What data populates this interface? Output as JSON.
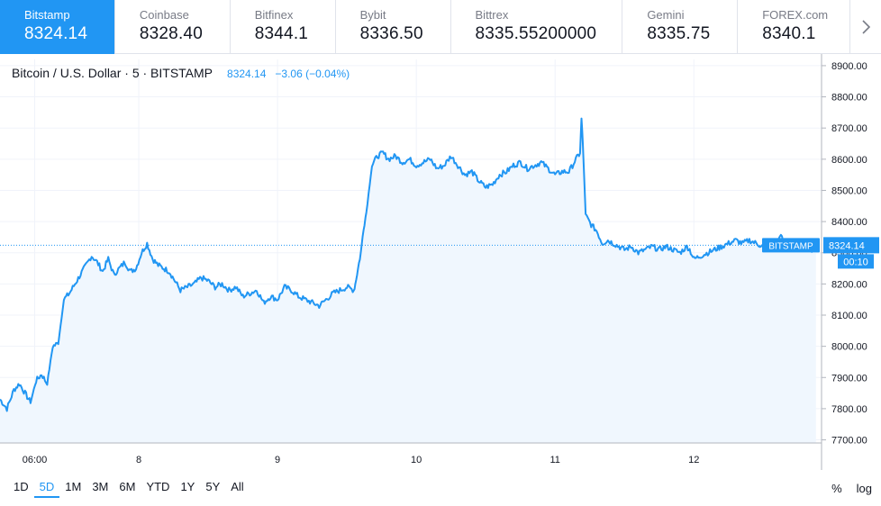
{
  "exchanges": [
    {
      "name": "Bitstamp",
      "price": "8324.14",
      "active": true
    },
    {
      "name": "Coinbase",
      "price": "8328.40",
      "active": false
    },
    {
      "name": "Bitfinex",
      "price": "8344.1",
      "active": false
    },
    {
      "name": "Bybit",
      "price": "8336.50",
      "active": false
    },
    {
      "name": "Bittrex",
      "price": "8335.55200000",
      "active": false
    },
    {
      "name": "Gemini",
      "price": "8335.75",
      "active": false
    },
    {
      "name": "FOREX.com",
      "price": "8340.1",
      "active": false
    }
  ],
  "legend": {
    "symbol": "Bitcoin / U.S. Dollar · 5 · BITSTAMP",
    "last": "8324.14",
    "change": "−3.06 (−0.04%)"
  },
  "price_marker": {
    "label": "BITSTAMP",
    "value": "8324.14",
    "countdown": "00:10"
  },
  "toolbar": {
    "ranges": [
      "1D",
      "5D",
      "1M",
      "3M",
      "6M",
      "YTD",
      "1Y",
      "5Y",
      "All"
    ],
    "active_range": "5D",
    "percent_label": "%",
    "log_label": "log"
  },
  "colors": {
    "line": "#2196f3",
    "area": "#e8f2fc",
    "grid": "#f0f3fa",
    "active_tab": "#2196f3"
  },
  "chart_data": {
    "type": "area",
    "x_ticks": [
      {
        "x": 0.25,
        "label": "06:00"
      },
      {
        "x": 1.0,
        "label": "8"
      },
      {
        "x": 2.0,
        "label": "9"
      },
      {
        "x": 3.0,
        "label": "10"
      },
      {
        "x": 4.0,
        "label": "11"
      },
      {
        "x": 5.0,
        "label": "12"
      }
    ],
    "xlim": [
      0.0,
      5.92
    ],
    "ylim": [
      7690,
      8920
    ],
    "y_ticks": [
      7700,
      7800,
      7900,
      8000,
      8100,
      8200,
      8300,
      8400,
      8500,
      8600,
      8700,
      8800,
      8900
    ],
    "y_tick_labels": [
      "7700.00",
      "7800.00",
      "7900.00",
      "8000.00",
      "8100.00",
      "8200.00",
      "8300.00",
      "8400.00",
      "8500.00",
      "8600.00",
      "8700.00",
      "8800.00",
      "8900.00"
    ],
    "grid": true,
    "last_price": 8324.14,
    "series": [
      {
        "x": [
          0.0,
          0.05,
          0.1,
          0.14,
          0.18,
          0.22,
          0.26,
          0.3,
          0.34,
          0.38,
          0.42,
          0.46,
          0.5,
          0.54,
          0.58,
          0.62,
          0.66,
          0.7,
          0.74,
          0.78,
          0.82,
          0.86,
          0.9,
          0.94,
          0.98,
          1.02,
          1.06,
          1.1,
          1.14,
          1.18,
          1.22,
          1.26,
          1.3,
          1.35,
          1.4,
          1.45,
          1.5,
          1.55,
          1.6,
          1.65,
          1.7,
          1.75,
          1.8,
          1.85,
          1.9,
          1.95,
          2.0,
          2.05,
          2.1,
          2.15,
          2.2,
          2.25,
          2.3,
          2.35,
          2.4,
          2.45,
          2.5,
          2.55,
          2.56,
          2.58,
          2.6,
          2.62,
          2.64,
          2.68,
          2.72,
          2.76,
          2.8,
          2.85,
          2.9,
          2.95,
          3.0,
          3.05,
          3.1,
          3.15,
          3.2,
          3.25,
          3.3,
          3.35,
          3.4,
          3.45,
          3.5,
          3.55,
          3.6,
          3.65,
          3.7,
          3.75,
          3.8,
          3.85,
          3.9,
          3.95,
          4.0,
          4.05,
          4.1,
          4.15,
          4.18,
          4.19,
          4.2,
          4.22,
          4.26,
          4.3,
          4.34,
          4.38,
          4.42,
          4.46,
          4.5,
          4.55,
          4.6,
          4.65,
          4.7,
          4.75,
          4.8,
          4.85,
          4.9,
          4.95,
          4.97,
          5.0,
          5.05,
          5.1,
          5.15,
          5.2,
          5.25,
          5.3,
          5.35,
          5.4,
          5.45,
          5.5,
          5.55,
          5.6,
          5.62,
          5.65,
          5.7,
          5.75,
          5.8,
          5.85,
          5.88
        ],
        "y": [
          7830,
          7800,
          7860,
          7880,
          7850,
          7820,
          7890,
          7910,
          7880,
          8000,
          8010,
          8150,
          8170,
          8200,
          8230,
          8260,
          8290,
          8270,
          8240,
          8280,
          8230,
          8250,
          8270,
          8240,
          8250,
          8300,
          8330,
          8280,
          8260,
          8250,
          8240,
          8210,
          8180,
          8190,
          8200,
          8220,
          8210,
          8190,
          8200,
          8180,
          8190,
          8160,
          8170,
          8180,
          8140,
          8160,
          8150,
          8190,
          8180,
          8160,
          8150,
          8140,
          8130,
          8150,
          8170,
          8180,
          8190,
          8180,
          8200,
          8250,
          8300,
          8380,
          8430,
          8580,
          8610,
          8620,
          8600,
          8610,
          8590,
          8600,
          8580,
          8590,
          8600,
          8570,
          8580,
          8610,
          8580,
          8550,
          8560,
          8530,
          8510,
          8520,
          8550,
          8560,
          8580,
          8590,
          8570,
          8580,
          8590,
          8570,
          8550,
          8560,
          8560,
          8600,
          8620,
          8730,
          8650,
          8420,
          8390,
          8370,
          8330,
          8340,
          8330,
          8320,
          8310,
          8320,
          8300,
          8310,
          8320,
          8310,
          8320,
          8310,
          8300,
          8320,
          8310,
          8280,
          8290,
          8300,
          8310,
          8320,
          8330,
          8340,
          8330,
          8340,
          8330,
          8320,
          8310,
          8320,
          8360,
          8330,
          8340,
          8320,
          8330,
          8310,
          8324.14
        ]
      }
    ]
  }
}
